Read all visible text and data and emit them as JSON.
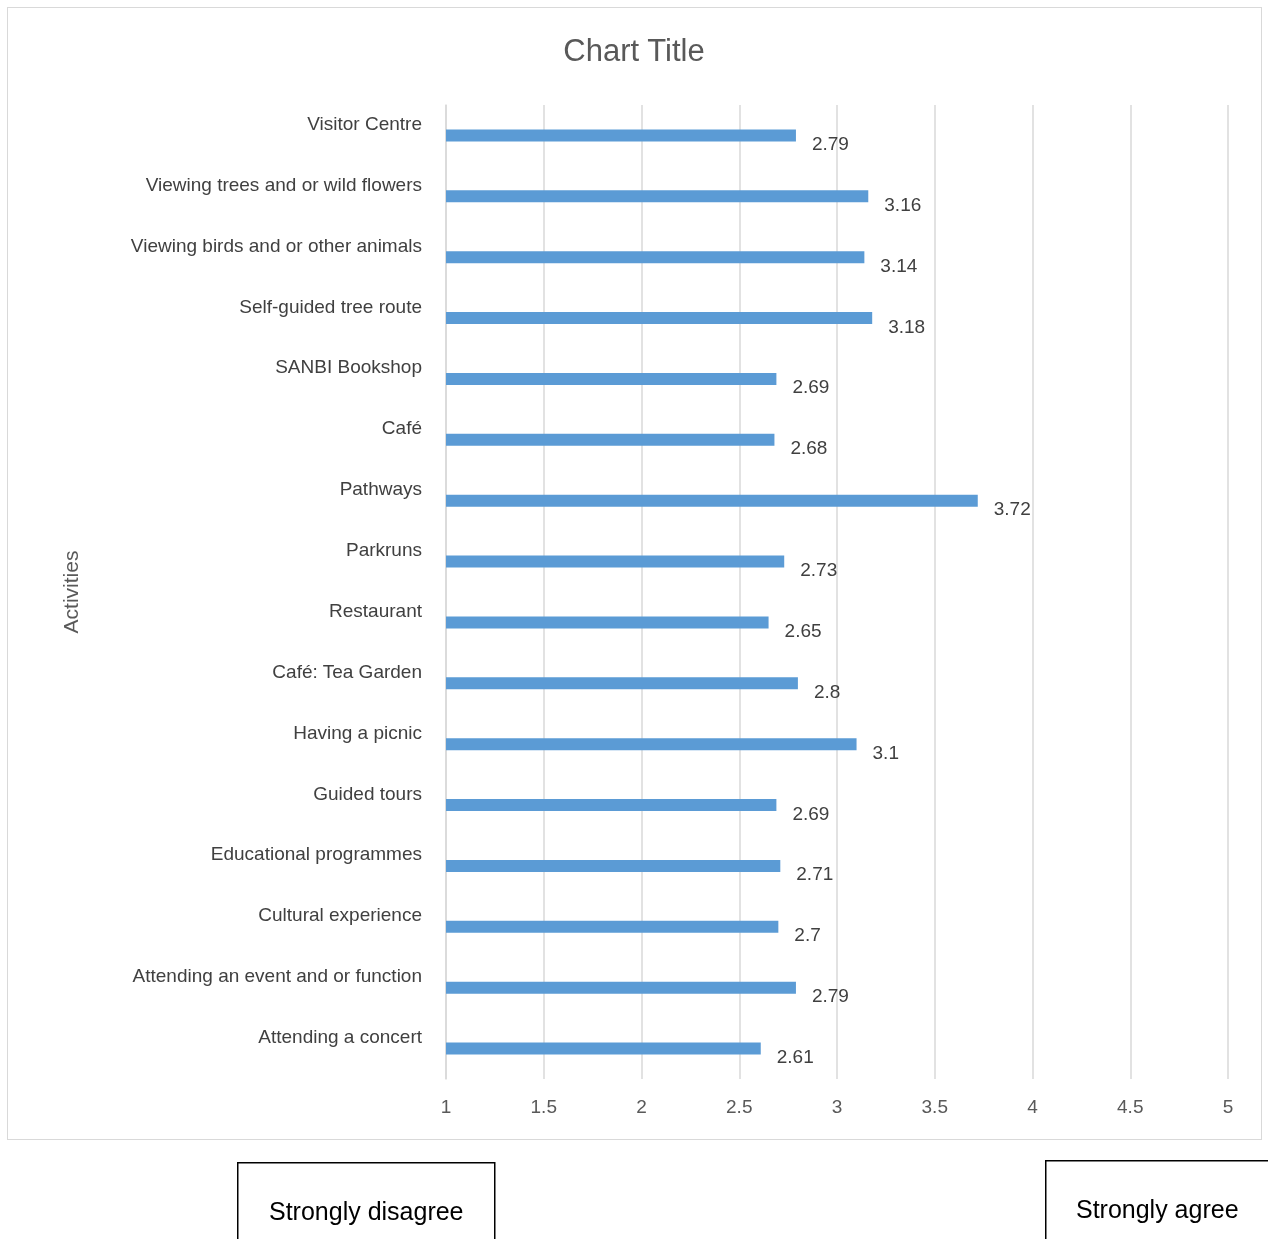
{
  "chart_data": {
    "type": "bar",
    "orientation": "horizontal",
    "title": "Chart Title",
    "ylabel": "Activities",
    "categories": [
      "Visitor Centre",
      "Viewing trees and or wild flowers",
      "Viewing birds and or other animals",
      "Self-guided tree route",
      "SANBI Bookshop",
      "Café",
      "Pathways",
      "Parkruns",
      "Restaurant",
      "Café: Tea Garden",
      "Having a picnic",
      "Guided tours",
      "Educational programmes",
      "Cultural experience",
      "Attending an event and or function",
      "Attending a concert"
    ],
    "values": [
      2.79,
      3.16,
      3.14,
      3.18,
      2.69,
      2.68,
      3.72,
      2.73,
      2.65,
      2.8,
      3.1,
      2.69,
      2.71,
      2.7,
      2.79,
      2.61
    ],
    "color": "#5b9bd5",
    "xlim": [
      1,
      5
    ],
    "xticks": [
      1,
      1.5,
      2,
      2.5,
      3,
      3.5,
      4,
      4.5,
      5
    ],
    "grid": "x",
    "data_labels": true,
    "annotations": [
      "Strongly disagree",
      "Strongly agree"
    ]
  }
}
